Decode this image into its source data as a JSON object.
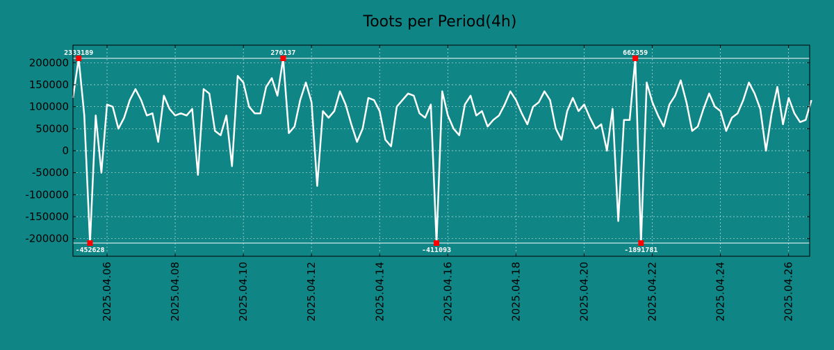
{
  "chart_data": {
    "type": "line",
    "title": "Toots per Period(4h)",
    "xlabel": "",
    "ylabel": "",
    "x_unit": "days since 2025-04-05 00:00",
    "xlim": [
      0.0,
      21.62
    ],
    "ylim": [
      -240000,
      240000
    ],
    "grid": true,
    "y_ticks": [
      200000,
      150000,
      100000,
      50000,
      0,
      -50000,
      -100000,
      -150000,
      -200000
    ],
    "y_tick_labels": [
      "200000",
      "150000",
      "100000",
      "50000",
      "0",
      "-50000",
      "-100000",
      "-150000",
      "-200000"
    ],
    "x_ticks": [
      1,
      3,
      5,
      7,
      9,
      11,
      13,
      15,
      17,
      19,
      21
    ],
    "x_tick_labels": [
      "2025.04.06",
      "2025.04.08",
      "2025.04.10",
      "2025.04.12",
      "2025.04.14",
      "2025.04.16",
      "2025.04.18",
      "2025.04.20",
      "2025.04.22",
      "2025.04.24",
      "2025.04.26"
    ],
    "clip_range": [
      -210000,
      210000
    ],
    "series": [
      {
        "name": "Toots",
        "step_days": 0.1667,
        "values": [
          120000,
          210000,
          80000,
          -210000,
          80000,
          -50000,
          105000,
          100000,
          50000,
          75000,
          115000,
          140000,
          115000,
          80000,
          85000,
          20000,
          125000,
          95000,
          80000,
          85000,
          80000,
          95000,
          -55000,
          140000,
          130000,
          45000,
          35000,
          80000,
          -35000,
          170000,
          155000,
          100000,
          85000,
          85000,
          145000,
          165000,
          125000,
          210000,
          40000,
          55000,
          115000,
          155000,
          110000,
          -80000,
          90000,
          75000,
          90000,
          135000,
          105000,
          60000,
          20000,
          50000,
          120000,
          115000,
          90000,
          25000,
          10000,
          100000,
          115000,
          130000,
          125000,
          85000,
          75000,
          105000,
          -210000,
          135000,
          80000,
          50000,
          35000,
          105000,
          125000,
          80000,
          90000,
          55000,
          70000,
          80000,
          105000,
          135000,
          115000,
          85000,
          60000,
          100000,
          110000,
          135000,
          115000,
          50000,
          25000,
          90000,
          120000,
          90000,
          105000,
          75000,
          50000,
          60000,
          0,
          95000,
          -160000,
          70000,
          70000,
          210000,
          -210000,
          155000,
          110000,
          80000,
          55000,
          105000,
          125000,
          160000,
          110000,
          45000,
          55000,
          95000,
          130000,
          100000,
          90000,
          45000,
          75000,
          85000,
          115000,
          155000,
          130000,
          95000,
          0,
          85000,
          145000,
          60000,
          120000,
          85000,
          65000,
          70000,
          115000
        ]
      }
    ],
    "peak_markers": [
      {
        "index": 1,
        "label": "2333189",
        "side": "top"
      },
      {
        "index": 3,
        "label": "-452628",
        "side": "bottom"
      },
      {
        "index": 37,
        "label": "276137",
        "side": "top"
      },
      {
        "index": 64,
        "label": "-411093",
        "side": "bottom"
      },
      {
        "index": 99,
        "label": "662359",
        "side": "top"
      },
      {
        "index": 100,
        "label": "-1891781",
        "side": "bottom"
      }
    ],
    "colors": {
      "background": "#108585",
      "line": "#ffffff",
      "marker": "#ff0000",
      "axes": "#000000",
      "grid": "#ffffff"
    }
  }
}
